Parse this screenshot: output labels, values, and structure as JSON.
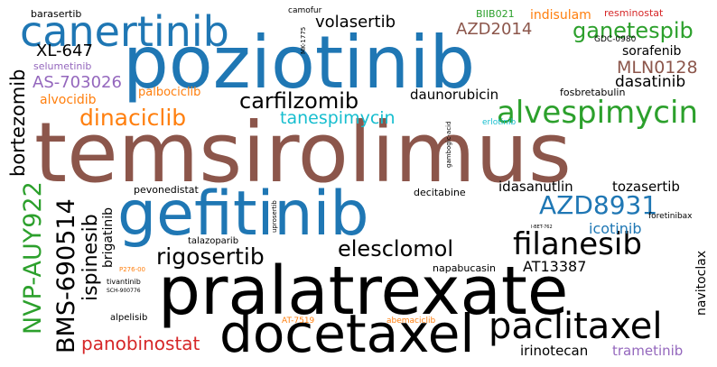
{
  "colors": {
    "blue": "#1f77b4",
    "brown": "#8c564b",
    "black": "#000000",
    "green": "#2ca02c",
    "orange": "#ff7f0e",
    "purple": "#9467bd",
    "red": "#d62728",
    "pink": "#e377c2",
    "teal": "#17becf"
  },
  "words": {
    "temsirolimus": "temsirolimus",
    "poziotinib": "poziotinib",
    "pralatrexate": "pralatrexate",
    "gefitinib": "gefitinib",
    "canertinib": "canertinib",
    "docetaxel": "docetaxel",
    "paclitaxel": "paclitaxel",
    "alvespimycin": "alvespimycin",
    "filanesib": "filanesib",
    "AZD8931": "AZD8931",
    "NVP_AUY922": "NVP-AUY922",
    "BMS_690514": "BMS-690514",
    "dinaciclib": "dinaciclib",
    "carfilzomib": "carfilzomib",
    "rigosertib": "rigosertib",
    "elesclomol": "elesclomol",
    "ganetespib": "ganetespib",
    "tanespimycin": "tanespimycin",
    "bortezomib": "bortezomib",
    "ispinesib": "ispinesib",
    "volasertib": "volasertib",
    "AZD2014": "AZD2014",
    "MLN0128": "MLN0128",
    "dasatinib": "dasatinib",
    "AS_703026": "AS-703026",
    "XL_647": "XL-647",
    "daunorubicin": "daunorubicin",
    "panobinostat": "panobinostat",
    "icotinib": "icotinib",
    "idasanutlin": "idasanutlin",
    "tozasertib": "tozasertib",
    "sorafenib": "sorafenib",
    "AT13387": "AT13387",
    "irinotecan": "irinotecan",
    "trametinib": "trametinib",
    "navitoclax": "navitoclax",
    "alvocidib": "alvocidib",
    "palbociclib": "palbociclib",
    "indisulam": "indisulam",
    "BIIB021": "BIIB021",
    "resminostat": "resminostat",
    "barasertib": "barasertib",
    "camofur": "camofur",
    "selumetinib": "selumetinib",
    "fosbretabulin": "fosbretabulin",
    "brigatinib": "brigatinib",
    "pevonedistat": "pevonedistat",
    "decitabine": "decitabine",
    "napabucasin": "napabucasin",
    "talazoparib": "talazoparib",
    "alpelisib": "alpelisib",
    "tivantinib": "tivantinib",
    "AT_7519": "AT-7519",
    "abemaciclib": "abemaciclib",
    "foretinibax": "foretinibax",
    "erlotinib": "erlotinib",
    "GDC_0980": "GDC-0980",
    "MK_1775": "MK-1775",
    "gambogic_acid": "gambogic-acid",
    "uprosertib": "uprosertib",
    "P276_00": "P276-00",
    "SCH_900776": "SCH-900776",
    "I_BET_762": "I-BET-762"
  }
}
